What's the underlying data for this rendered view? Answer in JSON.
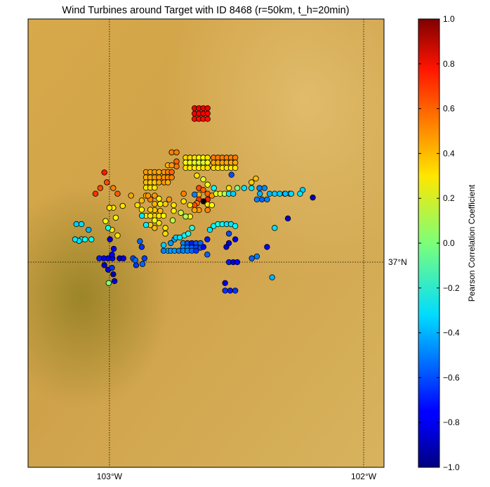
{
  "chart_data": {
    "type": "scatter",
    "title": "Wind Turbines around Target with ID 8468 (r=50km, t_h=20min)",
    "xlabel": "",
    "ylabel": "",
    "x_ticks": [
      {
        "value": -103,
        "label": "103°W"
      },
      {
        "value": -102,
        "label": "102°W"
      }
    ],
    "y_ticks": [
      {
        "value": 37,
        "label": "37°N"
      }
    ],
    "xlim": [
      -103.32,
      -101.92
    ],
    "ylim": [
      36.46,
      37.64
    ],
    "grid": "meridians and parallels, dotted",
    "colorbar": {
      "label": "Pearson Correlation Coefficient",
      "range": [
        -1,
        1
      ],
      "ticks": [
        1.0,
        0.8,
        0.6,
        0.4,
        0.2,
        0.0,
        -0.2,
        -0.4,
        -0.6,
        -0.8,
        -1.0
      ],
      "tick_labels": [
        "1.0",
        "0.8",
        "0.6",
        "0.4",
        "0.2",
        "0.0",
        "−0.2",
        "−0.4",
        "−0.6",
        "−0.8",
        "−1.0"
      ],
      "colormap": "jet"
    },
    "target": {
      "lon": -102.63,
      "lat": 37.16
    },
    "points": [
      [
        -102.665,
        37.405,
        0.78
      ],
      [
        -102.648,
        37.405,
        0.78
      ],
      [
        -102.631,
        37.405,
        0.78
      ],
      [
        -102.614,
        37.405,
        0.78
      ],
      [
        -102.665,
        37.391,
        0.75
      ],
      [
        -102.648,
        37.391,
        0.75
      ],
      [
        -102.631,
        37.391,
        0.75
      ],
      [
        -102.614,
        37.391,
        0.75
      ],
      [
        -102.665,
        37.377,
        0.73
      ],
      [
        -102.648,
        37.377,
        0.73
      ],
      [
        -102.631,
        37.377,
        0.73
      ],
      [
        -102.614,
        37.377,
        0.73
      ],
      [
        -102.755,
        37.289,
        0.5
      ],
      [
        -102.736,
        37.289,
        0.5
      ],
      [
        -102.7,
        37.275,
        0.33
      ],
      [
        -102.683,
        37.275,
        0.33
      ],
      [
        -102.665,
        37.275,
        0.3
      ],
      [
        -102.648,
        37.275,
        0.25
      ],
      [
        -102.631,
        37.275,
        0.25
      ],
      [
        -102.614,
        37.275,
        0.3
      ],
      [
        -102.7,
        37.262,
        0.25
      ],
      [
        -102.683,
        37.262,
        0.22
      ],
      [
        -102.665,
        37.262,
        0.2
      ],
      [
        -102.648,
        37.262,
        0.18
      ],
      [
        -102.631,
        37.262,
        0.2
      ],
      [
        -102.614,
        37.262,
        0.25
      ],
      [
        -102.7,
        37.248,
        0.3
      ],
      [
        -102.683,
        37.248,
        0.3
      ],
      [
        -102.665,
        37.248,
        0.28
      ],
      [
        -102.648,
        37.248,
        0.28
      ],
      [
        -102.631,
        37.248,
        0.3
      ],
      [
        -102.614,
        37.248,
        0.32
      ],
      [
        -102.59,
        37.275,
        0.5
      ],
      [
        -102.573,
        37.275,
        0.5
      ],
      [
        -102.556,
        37.275,
        0.5
      ],
      [
        -102.539,
        37.275,
        0.5
      ],
      [
        -102.522,
        37.275,
        0.5
      ],
      [
        -102.505,
        37.275,
        0.5
      ],
      [
        -102.59,
        37.262,
        0.42
      ],
      [
        -102.573,
        37.262,
        0.42
      ],
      [
        -102.556,
        37.262,
        0.42
      ],
      [
        -102.539,
        37.262,
        0.42
      ],
      [
        -102.522,
        37.262,
        0.42
      ],
      [
        -102.505,
        37.262,
        0.42
      ],
      [
        -102.59,
        37.248,
        0.3
      ],
      [
        -102.573,
        37.248,
        0.3
      ],
      [
        -102.556,
        37.248,
        0.3
      ],
      [
        -102.539,
        37.248,
        0.3
      ],
      [
        -102.522,
        37.248,
        0.3
      ],
      [
        -102.505,
        37.248,
        0.3
      ],
      [
        -102.736,
        37.265,
        0.55
      ],
      [
        -102.736,
        37.252,
        0.52
      ],
      [
        -102.77,
        37.255,
        0.4
      ],
      [
        -102.755,
        37.255,
        0.45
      ],
      [
        -102.856,
        37.237,
        0.45
      ],
      [
        -102.839,
        37.237,
        0.42
      ],
      [
        -102.822,
        37.237,
        0.45
      ],
      [
        -102.805,
        37.237,
        0.42
      ],
      [
        -102.785,
        37.237,
        0.45
      ],
      [
        -102.77,
        37.237,
        0.5
      ],
      [
        -102.755,
        37.237,
        0.55
      ],
      [
        -102.856,
        37.223,
        0.4
      ],
      [
        -102.839,
        37.223,
        0.42
      ],
      [
        -102.822,
        37.223,
        0.45
      ],
      [
        -102.805,
        37.223,
        0.45
      ],
      [
        -102.785,
        37.223,
        0.45
      ],
      [
        -102.77,
        37.223,
        0.48
      ],
      [
        -102.755,
        37.223,
        0.5
      ],
      [
        -102.856,
        37.21,
        0.38
      ],
      [
        -102.839,
        37.21,
        0.35
      ],
      [
        -102.822,
        37.21,
        0.35
      ],
      [
        -102.805,
        37.21,
        0.42
      ],
      [
        -102.785,
        37.21,
        0.45
      ],
      [
        -102.77,
        37.21,
        0.4
      ],
      [
        -102.856,
        37.196,
        0.3
      ],
      [
        -102.839,
        37.196,
        0.32
      ],
      [
        -102.822,
        37.196,
        0.3
      ],
      [
        -102.656,
        37.228,
        0.3
      ],
      [
        -102.631,
        37.218,
        0.18
      ],
      [
        -102.614,
        37.204,
        0.25
      ],
      [
        -102.648,
        37.195,
        0.6
      ],
      [
        -102.631,
        37.19,
        0.55
      ],
      [
        -102.614,
        37.18,
        0.55
      ],
      [
        -102.648,
        37.178,
        0.4
      ],
      [
        -102.597,
        37.175,
        0.45
      ],
      [
        -102.648,
        37.165,
        0.65
      ],
      [
        -102.614,
        37.165,
        0.68
      ],
      [
        -102.656,
        37.155,
        0.5
      ],
      [
        -102.614,
        37.152,
        0.3
      ],
      [
        -102.597,
        37.15,
        0.25
      ],
      [
        -102.589,
        37.195,
        -0.25
      ],
      [
        -102.58,
        37.18,
        0.2
      ],
      [
        -102.564,
        37.18,
        0.2
      ],
      [
        -102.547,
        37.18,
        0.1
      ],
      [
        -102.53,
        37.18,
        -0.3
      ],
      [
        -102.513,
        37.18,
        -0.35
      ],
      [
        -102.53,
        37.195,
        0.3
      ],
      [
        -102.497,
        37.195,
        0.0
      ],
      [
        -102.47,
        37.195,
        -0.3
      ],
      [
        -102.441,
        37.195,
        -0.3
      ],
      [
        -102.441,
        37.21,
        0.35
      ],
      [
        -102.424,
        37.22,
        0.38
      ],
      [
        -102.52,
        37.23,
        -0.6
      ],
      [
        -102.665,
        37.178,
        -0.5
      ],
      [
        -102.665,
        37.15,
        0.6
      ],
      [
        -102.648,
        37.137,
        0.45
      ],
      [
        -102.665,
        37.137,
        0.42
      ],
      [
        -102.614,
        37.137,
        0.5
      ],
      [
        -102.708,
        37.18,
        0.5
      ],
      [
        -102.708,
        37.16,
        0.3
      ],
      [
        -102.683,
        37.15,
        0.3
      ],
      [
        -102.683,
        37.12,
        0.25
      ],
      [
        -102.747,
        37.15,
        0.3
      ],
      [
        -102.747,
        37.135,
        0.28
      ],
      [
        -102.719,
        37.13,
        0.15
      ],
      [
        -102.7,
        37.12,
        0.1
      ],
      [
        -102.751,
        37.11,
        0.12
      ],
      [
        -102.765,
        37.165,
        0.45
      ],
      [
        -102.78,
        37.153,
        0.35
      ],
      [
        -102.8,
        37.153,
        0.28
      ],
      [
        -102.822,
        37.153,
        0.4
      ],
      [
        -102.8,
        37.135,
        0.38
      ],
      [
        -102.822,
        37.137,
        0.35
      ],
      [
        -102.839,
        37.165,
        0.5
      ],
      [
        -102.839,
        37.138,
        0.35
      ],
      [
        -102.822,
        37.122,
        0.35
      ],
      [
        -102.805,
        37.122,
        0.3
      ],
      [
        -102.787,
        37.122,
        0.25
      ],
      [
        -102.856,
        37.122,
        0.3
      ],
      [
        -102.872,
        37.122,
        -0.3
      ],
      [
        -102.839,
        37.122,
        0.3
      ],
      [
        -102.822,
        37.11,
        0.22
      ],
      [
        -102.873,
        37.138,
        0.28
      ],
      [
        -102.873,
        37.162,
        0.38
      ],
      [
        -102.89,
        37.15,
        0.32
      ],
      [
        -102.856,
        37.175,
        0.4
      ],
      [
        -102.848,
        37.175,
        0.45
      ],
      [
        -102.822,
        37.175,
        0.45
      ],
      [
        -102.805,
        37.167,
        0.28
      ],
      [
        -102.805,
        37.103,
        0.3
      ],
      [
        -102.822,
        37.09,
        0.38
      ],
      [
        -102.839,
        37.098,
        0.35
      ],
      [
        -102.856,
        37.098,
        -0.28
      ],
      [
        -102.78,
        37.09,
        0.3
      ],
      [
        -102.78,
        37.075,
        0.32
      ],
      [
        -103.02,
        37.236,
        0.7
      ],
      [
        -103.055,
        37.18,
        0.65
      ],
      [
        -103.036,
        37.195,
        0.6
      ],
      [
        -103.01,
        37.21,
        0.6
      ],
      [
        -102.985,
        37.195,
        0.5
      ],
      [
        -102.968,
        37.18,
        0.58
      ],
      [
        -102.915,
        37.175,
        0.42
      ],
      [
        -102.985,
        37.143,
        0.3
      ],
      [
        -103.0,
        37.143,
        0.3
      ],
      [
        -102.948,
        37.148,
        0.3
      ],
      [
        -102.968,
        37.07,
        0.3
      ],
      [
        -102.99,
        37.085,
        0.3
      ],
      [
        -102.975,
        37.117,
        0.22
      ],
      [
        -103.11,
        37.06,
        -0.2
      ],
      [
        -103.096,
        37.06,
        -0.22
      ],
      [
        -103.071,
        37.06,
        -0.25
      ],
      [
        -103.12,
        37.056,
        -0.3
      ],
      [
        -103.135,
        37.06,
        -0.3
      ],
      [
        -102.88,
        37.055,
        -0.55
      ],
      [
        -102.873,
        37.04,
        -0.65
      ],
      [
        -102.759,
        37.05,
        -0.45
      ],
      [
        -102.744,
        37.06,
        -0.4
      ],
      [
        -102.71,
        37.05,
        -0.5
      ],
      [
        -102.693,
        37.05,
        -0.6
      ],
      [
        -102.676,
        37.05,
        -0.7
      ],
      [
        -102.659,
        37.05,
        -0.6
      ],
      [
        -102.642,
        37.05,
        -0.55
      ],
      [
        -102.71,
        37.038,
        -0.45
      ],
      [
        -102.693,
        37.038,
        -0.5
      ],
      [
        -102.676,
        37.038,
        -0.55
      ],
      [
        -102.659,
        37.038,
        -0.6
      ],
      [
        -102.642,
        37.038,
        -0.6
      ],
      [
        -102.77,
        37.03,
        -0.4
      ],
      [
        -102.787,
        37.03,
        -0.5
      ],
      [
        -102.787,
        37.045,
        -0.35
      ],
      [
        -102.759,
        37.03,
        -0.45
      ],
      [
        -102.744,
        37.03,
        -0.45
      ],
      [
        -102.727,
        37.03,
        -0.5
      ],
      [
        -102.71,
        37.03,
        -0.5
      ],
      [
        -102.693,
        37.03,
        -0.5
      ],
      [
        -102.676,
        37.03,
        -0.55
      ],
      [
        -102.659,
        37.03,
        -0.65
      ],
      [
        -102.738,
        37.065,
        -0.35
      ],
      [
        -102.723,
        37.065,
        -0.3
      ],
      [
        -102.705,
        37.07,
        -0.25
      ],
      [
        -102.69,
        37.075,
        -0.2
      ],
      [
        -102.675,
        37.09,
        -0.15
      ],
      [
        -102.615,
        37.02,
        -0.55
      ],
      [
        -102.63,
        37.04,
        -0.75
      ],
      [
        -102.615,
        37.06,
        -0.7
      ],
      [
        -102.59,
        37.095,
        -0.25
      ],
      [
        -102.573,
        37.1,
        -0.2
      ],
      [
        -102.556,
        37.1,
        -0.22
      ],
      [
        -102.539,
        37.1,
        -0.3
      ],
      [
        -102.522,
        37.1,
        -0.3
      ],
      [
        -102.505,
        37.095,
        -0.25
      ],
      [
        -102.605,
        37.085,
        -0.3
      ],
      [
        -102.53,
        37.075,
        -0.6
      ],
      [
        -102.53,
        37.05,
        -0.8
      ],
      [
        -102.54,
        37.04,
        -0.85
      ],
      [
        -102.505,
        37.06,
        -0.75
      ],
      [
        -102.53,
        37.0,
        -0.7
      ],
      [
        -102.513,
        37.0,
        -0.8
      ],
      [
        -102.497,
        37.0,
        -0.75
      ],
      [
        -102.545,
        36.945,
        -0.8
      ],
      [
        -102.545,
        36.925,
        -0.65
      ],
      [
        -102.525,
        36.925,
        -0.7
      ],
      [
        -102.505,
        36.925,
        -0.65
      ],
      [
        -102.41,
        37.195,
        -0.5
      ],
      [
        -102.408,
        37.18,
        -0.4
      ],
      [
        -102.39,
        37.195,
        -0.48
      ],
      [
        -102.37,
        37.18,
        -0.4
      ],
      [
        -102.35,
        37.18,
        -0.35
      ],
      [
        -102.33,
        37.18,
        -0.35
      ],
      [
        -102.31,
        37.18,
        -0.35
      ],
      [
        -102.29,
        37.18,
        -0.38
      ],
      [
        -102.42,
        37.165,
        -0.5
      ],
      [
        -102.4,
        37.165,
        -0.55
      ],
      [
        -102.38,
        37.165,
        -0.5
      ],
      [
        -102.308,
        37.18,
        -0.38
      ],
      [
        -102.285,
        37.18,
        -0.32
      ],
      [
        -102.24,
        37.19,
        -0.35
      ],
      [
        -102.25,
        37.18,
        -0.3
      ],
      [
        -102.2,
        37.17,
        -0.9
      ],
      [
        -102.298,
        37.115,
        -0.85
      ],
      [
        -102.35,
        37.09,
        -0.3
      ],
      [
        -102.38,
        37.04,
        -0.75
      ],
      [
        -102.42,
        37.015,
        -0.5
      ],
      [
        -102.44,
        37.01,
        -0.55
      ],
      [
        -102.36,
        36.96,
        -0.4
      ],
      [
        -103.13,
        37.1,
        -0.35
      ],
      [
        -103.11,
        37.1,
        -0.32
      ],
      [
        -103.082,
        37.085,
        -0.4
      ],
      [
        -103.015,
        37.108,
        0.22
      ],
      [
        -103.005,
        37.09,
        -0.2
      ],
      [
        -103.04,
        37.01,
        -0.7
      ],
      [
        -103.022,
        37.01,
        -0.75
      ],
      [
        -103.005,
        37.01,
        -0.8
      ],
      [
        -102.988,
        37.01,
        -0.75
      ],
      [
        -102.96,
        37.01,
        -0.85
      ],
      [
        -102.945,
        37.01,
        -0.8
      ],
      [
        -102.907,
        37.01,
        -0.6
      ],
      [
        -102.895,
        36.992,
        -0.65
      ],
      [
        -102.898,
        37.005,
        -0.55
      ],
      [
        -103.02,
        36.992,
        -0.85
      ],
      [
        -103.005,
        36.98,
        -0.8
      ],
      [
        -102.99,
        36.985,
        -0.65
      ],
      [
        -102.985,
        36.968,
        -0.9
      ],
      [
        -102.98,
        36.95,
        -0.82
      ],
      [
        -103.003,
        36.945,
        0.0
      ],
      [
        -102.998,
        37.06,
        -0.85
      ],
      [
        -102.983,
        37.035,
        -0.75
      ],
      [
        -102.99,
        37.02,
        -0.75
      ],
      [
        -102.87,
        36.995,
        -0.55
      ],
      [
        -102.862,
        37.01,
        -0.62
      ]
    ]
  }
}
